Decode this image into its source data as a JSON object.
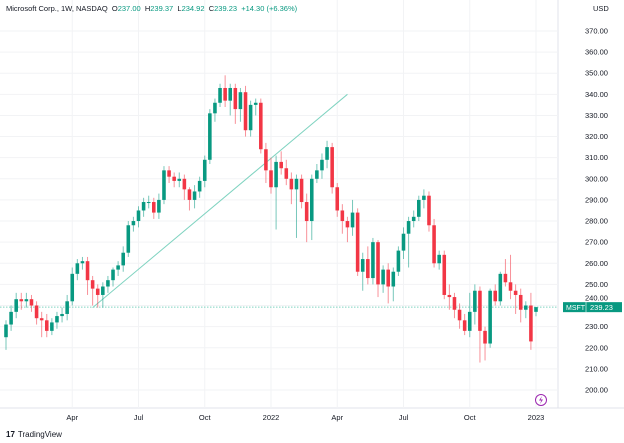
{
  "header": {
    "symbol": "Microsoft Corp., 1W, NASDAQ",
    "o_label": "O",
    "open": "237.00",
    "h_label": "H",
    "high": "239.37",
    "l_label": "L",
    "low": "234.92",
    "c_label": "C",
    "close": "239.23",
    "change": "+14.30 (+6.36%)"
  },
  "currency": "USD",
  "price_tag": {
    "ticker": "MSFT",
    "value": "239.23"
  },
  "branding": "TradingView",
  "colors": {
    "up": "#089981",
    "down": "#f23645",
    "trendline": "#7fd3c0",
    "pricetag": "#089981",
    "lightning": "#9c27b0"
  },
  "chart_data": {
    "type": "candlestick",
    "title": "Microsoft Corp., 1W, NASDAQ",
    "ylim": [
      193,
      378
    ],
    "y_ticks": [
      "200.00",
      "210.00",
      "220.00",
      "230.00",
      "240.00",
      "250.00",
      "260.00",
      "270.00",
      "280.00",
      "290.00",
      "300.00",
      "310.00",
      "320.00",
      "330.00",
      "340.00",
      "350.00",
      "360.00",
      "370.00"
    ],
    "x_ticks": [
      {
        "label": "Apr",
        "index": 13
      },
      {
        "label": "Jul",
        "index": 26
      },
      {
        "label": "Oct",
        "index": 39
      },
      {
        "label": "2022",
        "index": 52
      },
      {
        "label": "Apr",
        "index": 65
      },
      {
        "label": "Jul",
        "index": 78
      },
      {
        "label": "Oct",
        "index": 91
      },
      {
        "label": "2023",
        "index": 104
      }
    ],
    "ohlc": [
      [
        225,
        233,
        219,
        231
      ],
      [
        231,
        240,
        228,
        237
      ],
      [
        237,
        246,
        234,
        243
      ],
      [
        243,
        246,
        238,
        242
      ],
      [
        242,
        246,
        239,
        243
      ],
      [
        243,
        245,
        237,
        240
      ],
      [
        240,
        242,
        231,
        234
      ],
      [
        234,
        237,
        225,
        233
      ],
      [
        233,
        236,
        225,
        228
      ],
      [
        228,
        234,
        226,
        232
      ],
      [
        232,
        237,
        229,
        235
      ],
      [
        235,
        239,
        232,
        236
      ],
      [
        236,
        245,
        233,
        242
      ],
      [
        242,
        258,
        240,
        255
      ],
      [
        255,
        262,
        252,
        260
      ],
      [
        260,
        263,
        257,
        261
      ],
      [
        261,
        263,
        245,
        252
      ],
      [
        252,
        254,
        240,
        248
      ],
      [
        248,
        250,
        239,
        245
      ],
      [
        245,
        251,
        239,
        249
      ],
      [
        249,
        254,
        246,
        252
      ],
      [
        252,
        258,
        249,
        257
      ],
      [
        257,
        261,
        254,
        259
      ],
      [
        259,
        268,
        256,
        265
      ],
      [
        265,
        280,
        263,
        278
      ],
      [
        278,
        282,
        275,
        280
      ],
      [
        280,
        287,
        277,
        285
      ],
      [
        285,
        291,
        282,
        289
      ],
      [
        289,
        292,
        286,
        289
      ],
      [
        289,
        291,
        281,
        284
      ],
      [
        284,
        293,
        281,
        290
      ],
      [
        290,
        306,
        288,
        304
      ],
      [
        304,
        306,
        298,
        301
      ],
      [
        301,
        303,
        296,
        299
      ],
      [
        299,
        303,
        296,
        300
      ],
      [
        300,
        302,
        290,
        295
      ],
      [
        295,
        296,
        285,
        290
      ],
      [
        290,
        297,
        286,
        294
      ],
      [
        294,
        301,
        291,
        299
      ],
      [
        299,
        311,
        296,
        309
      ],
      [
        309,
        333,
        307,
        331
      ],
      [
        331,
        338,
        327,
        336
      ],
      [
        336,
        345,
        334,
        343
      ],
      [
        343,
        349,
        334,
        337
      ],
      [
        337,
        345,
        330,
        343
      ],
      [
        343,
        345,
        326,
        333
      ],
      [
        333,
        343,
        327,
        341
      ],
      [
        341,
        344,
        320,
        323
      ],
      [
        323,
        337,
        320,
        335
      ],
      [
        335,
        338,
        330,
        336
      ],
      [
        336,
        338,
        312,
        314
      ],
      [
        314,
        317,
        298,
        304
      ],
      [
        304,
        310,
        293,
        296
      ],
      [
        296,
        311,
        276,
        308
      ],
      [
        308,
        313,
        302,
        305
      ],
      [
        305,
        309,
        297,
        300
      ],
      [
        300,
        303,
        288,
        295
      ],
      [
        295,
        302,
        272,
        300
      ],
      [
        300,
        302,
        286,
        289
      ],
      [
        289,
        293,
        270,
        280
      ],
      [
        280,
        302,
        271,
        300
      ],
      [
        300,
        307,
        298,
        304
      ],
      [
        304,
        312,
        300,
        309
      ],
      [
        309,
        318,
        305,
        315
      ],
      [
        315,
        317,
        293,
        296
      ],
      [
        296,
        298,
        282,
        285
      ],
      [
        285,
        288,
        274,
        280
      ],
      [
        280,
        282,
        270,
        277
      ],
      [
        277,
        290,
        273,
        284
      ],
      [
        284,
        286,
        254,
        256
      ],
      [
        256,
        265,
        247,
        262
      ],
      [
        262,
        268,
        250,
        253
      ],
      [
        253,
        272,
        250,
        270
      ],
      [
        270,
        271,
        244,
        250
      ],
      [
        250,
        259,
        246,
        257
      ],
      [
        257,
        260,
        241,
        249
      ],
      [
        249,
        258,
        242,
        256
      ],
      [
        256,
        268,
        254,
        266
      ],
      [
        266,
        277,
        262,
        274
      ],
      [
        274,
        282,
        258,
        280
      ],
      [
        280,
        285,
        277,
        282
      ],
      [
        282,
        292,
        280,
        290
      ],
      [
        290,
        295,
        286,
        292
      ],
      [
        292,
        294,
        275,
        278
      ],
      [
        278,
        281,
        258,
        260
      ],
      [
        260,
        266,
        257,
        264
      ],
      [
        264,
        266,
        243,
        245
      ],
      [
        245,
        250,
        238,
        244
      ],
      [
        244,
        246,
        234,
        238
      ],
      [
        238,
        241,
        229,
        233
      ],
      [
        233,
        236,
        226,
        228
      ],
      [
        228,
        246,
        225,
        237
      ],
      [
        237,
        250,
        231,
        247
      ],
      [
        247,
        249,
        213,
        228
      ],
      [
        228,
        230,
        214,
        222
      ],
      [
        222,
        248,
        220,
        247
      ],
      [
        247,
        250,
        240,
        242
      ],
      [
        242,
        256,
        240,
        255
      ],
      [
        255,
        262,
        249,
        251
      ],
      [
        251,
        264,
        243,
        247
      ],
      [
        247,
        250,
        236,
        245
      ],
      [
        245,
        248,
        232,
        238
      ],
      [
        238,
        242,
        234,
        240
      ],
      [
        240,
        246,
        219,
        223
      ],
      [
        237,
        239.37,
        234.92,
        239.23
      ]
    ],
    "trendline": {
      "from": {
        "index": 17,
        "price": 239
      },
      "to": {
        "index": 67,
        "price": 340
      }
    },
    "last_price_line": 239.23
  }
}
